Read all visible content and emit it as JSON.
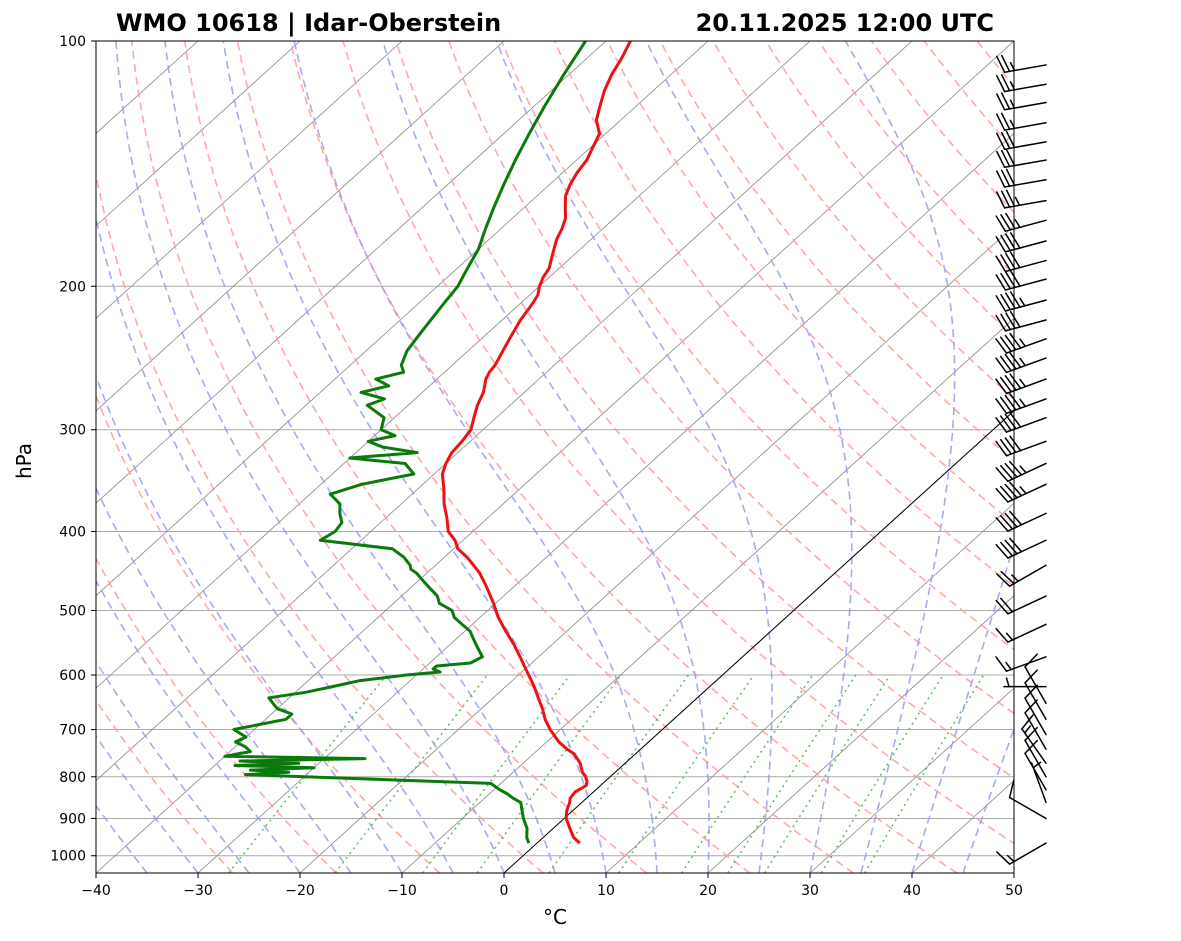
{
  "title_left": "WMO 10618 | Idar-Oberstein",
  "title_right": "20.11.2025 12:00 UTC",
  "chart_data": {
    "type": "line",
    "xlabel": "°C",
    "ylabel": "hPa",
    "xlim": [
      -40,
      50
    ],
    "ylim": [
      1050,
      100
    ],
    "yscale": "log",
    "x_ticks": [
      -40,
      -30,
      -20,
      -10,
      0,
      10,
      20,
      30,
      40,
      50
    ],
    "x_tick_labels": [
      "−40",
      "−30",
      "−20",
      "−10",
      "0",
      "10",
      "20",
      "30",
      "40",
      "50"
    ],
    "y_ticks": [
      1000,
      900,
      800,
      700,
      600,
      500,
      400,
      300,
      200,
      100
    ],
    "y_tick_labels": [
      "1000",
      "900",
      "800",
      "700",
      "600",
      "500",
      "400",
      "300",
      "200",
      "100"
    ],
    "grid": true,
    "skew": true,
    "colors": {
      "temperature": "#ee1111",
      "dewpoint": "#0a7a0a",
      "isotherms": "#888888",
      "dry_adiabats": "#ff9a9a",
      "moist_adiabats": "#9a9aee",
      "mixing_ratio": "#55bb55",
      "reference_isotherm": "#000000",
      "wind_barbs": "#000000"
    },
    "series": [
      {
        "p": [
          965,
          950,
          925,
          900,
          880,
          860,
          850,
          835,
          820,
          810,
          800,
          790,
          780,
          770,
          760,
          750,
          740,
          725,
          700,
          680,
          660,
          640,
          620,
          600,
          585,
          570,
          550,
          530,
          510,
          490,
          470,
          450,
          430,
          420,
          410,
          400,
          385,
          370,
          355,
          340,
          330,
          320,
          310,
          300,
          290,
          280,
          270,
          260,
          255,
          250,
          240,
          230,
          220,
          210,
          205,
          200,
          195,
          190,
          185,
          180,
          175,
          170,
          165,
          160,
          155,
          150,
          145,
          140,
          135,
          130,
          125,
          120,
          115,
          110,
          105,
          100
        ],
        "t": [
          4.2,
          3.0,
          1.6,
          0.2,
          -0.6,
          -1.2,
          -1.6,
          -1.8,
          -1.4,
          -1.8,
          -2.4,
          -3.2,
          -3.8,
          -4.4,
          -5.2,
          -6.0,
          -7.2,
          -8.8,
          -11.0,
          -12.6,
          -14.0,
          -15.6,
          -17.2,
          -19.0,
          -20.4,
          -21.8,
          -23.8,
          -26.0,
          -28.2,
          -30.2,
          -32.4,
          -34.8,
          -37.8,
          -39.6,
          -40.8,
          -42.4,
          -44.0,
          -45.8,
          -47.4,
          -49.2,
          -50.0,
          -50.6,
          -50.8,
          -51.2,
          -52.2,
          -53.2,
          -54.0,
          -55.2,
          -55.6,
          -55.8,
          -56.6,
          -57.4,
          -58.2,
          -58.8,
          -59.2,
          -60.0,
          -60.6,
          -61.0,
          -61.8,
          -62.6,
          -63.4,
          -64.0,
          -64.8,
          -66.0,
          -67.2,
          -68.0,
          -68.6,
          -69.0,
          -69.8,
          -70.6,
          -72.4,
          -73.6,
          -74.8,
          -75.8,
          -76.6,
          -77.6
        ],
        "name": "",
        "role": "temperature"
      },
      {
        "p": [
          965,
          950,
          925,
          900,
          880,
          860,
          850,
          840,
          830,
          815,
          800,
          795,
          790,
          785,
          780,
          775,
          770,
          765,
          760,
          755,
          750,
          745,
          735,
          725,
          715,
          700,
          690,
          680,
          670,
          660,
          650,
          640,
          630,
          620,
          610,
          600,
          595,
          590,
          585,
          580,
          570,
          560,
          550,
          540,
          530,
          520,
          510,
          500,
          490,
          480,
          470,
          460,
          450,
          445,
          440,
          430,
          425,
          420,
          410,
          400,
          390,
          380,
          370,
          360,
          350,
          340,
          330,
          325,
          320,
          315,
          310,
          305,
          300,
          290,
          280,
          275,
          270,
          265,
          260,
          255,
          250,
          240,
          230,
          220,
          210,
          200,
          190,
          180,
          170,
          160,
          150,
          140,
          130,
          120,
          110,
          100
        ],
        "td": [
          -0.8,
          -1.6,
          -2.6,
          -4.0,
          -5.0,
          -6.0,
          -7.2,
          -8.2,
          -9.4,
          -11.0,
          -30.0,
          -36.0,
          -32.0,
          -36.0,
          -30.0,
          -38.0,
          -32.0,
          -38.0,
          -26.0,
          -40.0,
          -39.0,
          -38.0,
          -39.0,
          -40.5,
          -40.0,
          -42.0,
          -40.0,
          -38.0,
          -38.0,
          -40.0,
          -41.0,
          -42.0,
          -39.0,
          -37.0,
          -35.0,
          -31.0,
          -28.0,
          -29.0,
          -29.0,
          -26.0,
          -25.5,
          -26.5,
          -27.5,
          -28.5,
          -29.5,
          -31.0,
          -32.5,
          -33.5,
          -35.5,
          -36.5,
          -38.0,
          -39.5,
          -41.0,
          -42.0,
          -42.5,
          -44.0,
          -45.0,
          -46.0,
          -54.0,
          -53.5,
          -53.8,
          -55.0,
          -56.0,
          -58.0,
          -56.0,
          -52.0,
          -54.0,
          -60.0,
          -54.0,
          -58.0,
          -60.0,
          -58.0,
          -60.0,
          -61.0,
          -64.0,
          -63.0,
          -66.0,
          -64.0,
          -66.0,
          -64.0,
          -65.0,
          -66.0,
          -66.5,
          -67.0,
          -67.5,
          -68.0,
          -69.0,
          -70.0,
          -71.5,
          -73.0,
          -74.5,
          -76.0,
          -77.5,
          -79.0,
          -80.5,
          -82.0
        ],
        "name": "",
        "role": "dewpoint"
      }
    ],
    "wind_barbs": [
      {
        "p": 965,
        "speed_kt": 15,
        "dir_deg": 240
      },
      {
        "p": 900,
        "speed_kt": 10,
        "dir_deg": 300
      },
      {
        "p": 860,
        "speed_kt": 5,
        "dir_deg": 340
      },
      {
        "p": 830,
        "speed_kt": 10,
        "dir_deg": 330
      },
      {
        "p": 800,
        "speed_kt": 10,
        "dir_deg": 330
      },
      {
        "p": 770,
        "speed_kt": 15,
        "dir_deg": 325
      },
      {
        "p": 740,
        "speed_kt": 10,
        "dir_deg": 330
      },
      {
        "p": 710,
        "speed_kt": 10,
        "dir_deg": 330
      },
      {
        "p": 680,
        "speed_kt": 10,
        "dir_deg": 330
      },
      {
        "p": 650,
        "speed_kt": 10,
        "dir_deg": 330
      },
      {
        "p": 620,
        "speed_kt": 5,
        "dir_deg": 270
      },
      {
        "p": 570,
        "speed_kt": 15,
        "dir_deg": 250
      },
      {
        "p": 520,
        "speed_kt": 15,
        "dir_deg": 245
      },
      {
        "p": 480,
        "speed_kt": 20,
        "dir_deg": 245
      },
      {
        "p": 440,
        "speed_kt": 25,
        "dir_deg": 240
      },
      {
        "p": 410,
        "speed_kt": 40,
        "dir_deg": 245
      },
      {
        "p": 380,
        "speed_kt": 40,
        "dir_deg": 245
      },
      {
        "p": 350,
        "speed_kt": 45,
        "dir_deg": 245
      },
      {
        "p": 330,
        "speed_kt": 45,
        "dir_deg": 245
      },
      {
        "p": 310,
        "speed_kt": 40,
        "dir_deg": 250
      },
      {
        "p": 290,
        "speed_kt": 40,
        "dir_deg": 250
      },
      {
        "p": 275,
        "speed_kt": 45,
        "dir_deg": 250
      },
      {
        "p": 260,
        "speed_kt": 45,
        "dir_deg": 250
      },
      {
        "p": 245,
        "speed_kt": 45,
        "dir_deg": 250
      },
      {
        "p": 232,
        "speed_kt": 45,
        "dir_deg": 250
      },
      {
        "p": 220,
        "speed_kt": 40,
        "dir_deg": 255
      },
      {
        "p": 208,
        "speed_kt": 45,
        "dir_deg": 255
      },
      {
        "p": 196,
        "speed_kt": 40,
        "dir_deg": 255
      },
      {
        "p": 186,
        "speed_kt": 40,
        "dir_deg": 255
      },
      {
        "p": 176,
        "speed_kt": 40,
        "dir_deg": 255
      },
      {
        "p": 166,
        "speed_kt": 35,
        "dir_deg": 255
      },
      {
        "p": 157,
        "speed_kt": 35,
        "dir_deg": 260
      },
      {
        "p": 148,
        "speed_kt": 30,
        "dir_deg": 260
      },
      {
        "p": 140,
        "speed_kt": 30,
        "dir_deg": 260
      },
      {
        "p": 133,
        "speed_kt": 30,
        "dir_deg": 260
      },
      {
        "p": 126,
        "speed_kt": 25,
        "dir_deg": 260
      },
      {
        "p": 119,
        "speed_kt": 25,
        "dir_deg": 260
      },
      {
        "p": 113,
        "speed_kt": 25,
        "dir_deg": 260
      },
      {
        "p": 107,
        "speed_kt": 25,
        "dir_deg": 260
      }
    ]
  }
}
